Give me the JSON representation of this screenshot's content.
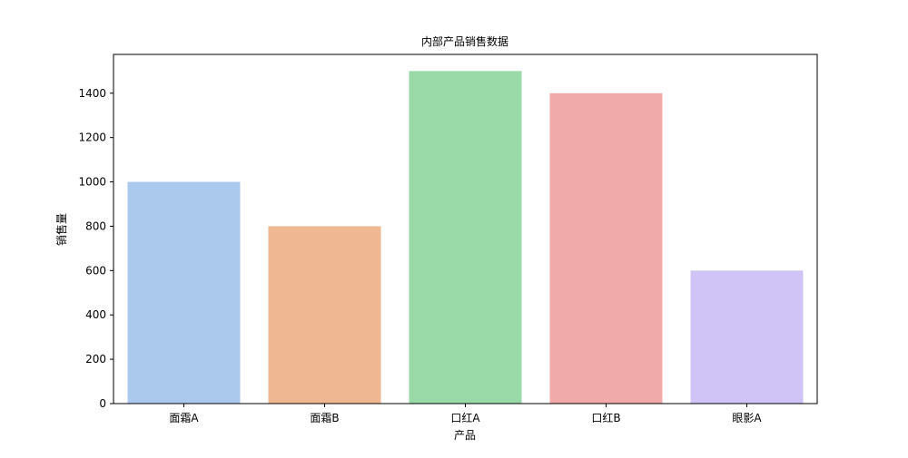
{
  "chart_data": {
    "type": "bar",
    "title": "内部产品销售数据",
    "xlabel": "产品",
    "ylabel": "销售量",
    "categories": [
      "面霜A",
      "面霜B",
      "口红A",
      "口红B",
      "眼影A"
    ],
    "values": [
      1000,
      800,
      1500,
      1400,
      600
    ],
    "colors": [
      "#abc9ed",
      "#efb792",
      "#9ad9a8",
      "#f0aaa9",
      "#d0c4f6"
    ],
    "ylim": [
      0,
      1575
    ],
    "yticks": [
      0,
      200,
      400,
      600,
      800,
      1000,
      1200,
      1400
    ],
    "grid": false,
    "legend": false
  }
}
